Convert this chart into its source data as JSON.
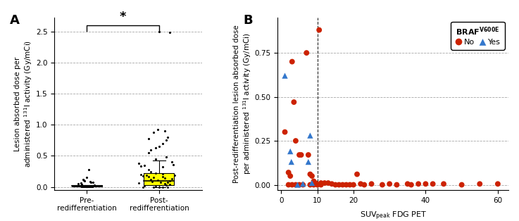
{
  "panel_A": {
    "pre_rediff": {
      "median": 0.018,
      "q1": 0.005,
      "q3": 0.028,
      "whisker_low": 0.0,
      "whisker_high": 0.035,
      "outliers_jitter": [
        [
          0.88,
          0.05
        ],
        [
          1.05,
          0.08
        ],
        [
          0.95,
          0.12
        ],
        [
          1.02,
          0.28
        ],
        [
          0.93,
          0.04
        ],
        [
          1.08,
          0.07
        ],
        [
          0.97,
          0.1
        ],
        [
          1.0,
          0.15
        ],
        [
          0.96,
          0.11
        ],
        [
          1.04,
          0.09
        ],
        [
          0.92,
          0.06
        ],
        [
          1.1,
          0.03
        ],
        [
          1.0,
          0.01
        ],
        [
          0.98,
          0.02
        ]
      ],
      "color": "#006400",
      "flier_color": "black"
    },
    "post_rediff": {
      "median": 0.095,
      "q1": 0.03,
      "q3": 0.22,
      "whisker_low": 0.0,
      "whisker_high": 0.43,
      "outliers": [
        0.6,
        0.63,
        0.65,
        0.7,
        0.75,
        0.78,
        0.8,
        0.88,
        0.9,
        0.92,
        2.48,
        2.5
      ],
      "jitter_inside": [
        [
          1.82,
          0.19
        ],
        [
          1.92,
          0.15
        ],
        [
          2.05,
          0.21
        ],
        [
          2.12,
          0.08
        ],
        [
          1.88,
          0.12
        ],
        [
          2.08,
          0.05
        ],
        [
          1.78,
          0.18
        ],
        [
          2.15,
          0.1
        ],
        [
          1.95,
          0.22
        ],
        [
          2.02,
          0.07
        ],
        [
          1.85,
          0.16
        ],
        [
          2.1,
          0.03
        ],
        [
          1.75,
          0.2
        ],
        [
          2.18,
          0.13
        ],
        [
          1.9,
          0.09
        ],
        [
          2.05,
          0.17
        ],
        [
          1.8,
          0.02
        ],
        [
          1.98,
          0.11
        ],
        [
          2.15,
          0.04
        ],
        [
          1.88,
          0.24
        ],
        [
          2.08,
          0.14
        ],
        [
          1.72,
          0.06
        ],
        [
          2.22,
          0.19
        ],
        [
          1.95,
          0.01
        ],
        [
          1.85,
          0.28
        ],
        [
          2.0,
          0.0
        ],
        [
          1.78,
          0.0
        ],
        [
          2.12,
          0.0
        ],
        [
          1.92,
          0.0
        ],
        [
          2.05,
          0.0
        ]
      ],
      "color": "#ffff00",
      "flier_color": "black"
    },
    "ylabel": "Lesion absorbed dose per\nadministered $^{131}$I activity (Gy/mCi)",
    "yticks": [
      0.0,
      0.5,
      1.0,
      1.5,
      2.0,
      2.5
    ],
    "ylim": [
      -0.05,
      2.72
    ],
    "xlabels": [
      "Pre-\nredifferentiation",
      "Post-\nredifferentiation"
    ],
    "significance_bracket_y": 2.6,
    "significance_text": "*"
  },
  "panel_B": {
    "red_circles": [
      [
        1.0,
        0.3
      ],
      [
        2.0,
        0.07
      ],
      [
        2.5,
        0.05
      ],
      [
        3.0,
        0.7
      ],
      [
        3.5,
        0.47
      ],
      [
        4.0,
        0.25
      ],
      [
        5.0,
        0.17
      ],
      [
        5.5,
        0.17
      ],
      [
        7.0,
        0.75
      ],
      [
        7.5,
        0.17
      ],
      [
        8.0,
        0.06
      ],
      [
        8.5,
        0.05
      ],
      [
        9.0,
        0.02
      ],
      [
        9.5,
        0.01
      ],
      [
        10.5,
        0.88
      ],
      [
        11.0,
        0.01
      ],
      [
        12.0,
        0.01
      ],
      [
        13.0,
        0.01
      ],
      [
        14.0,
        0.005
      ],
      [
        21.0,
        0.06
      ],
      [
        22.0,
        0.005
      ],
      [
        25.0,
        0.005
      ],
      [
        30.0,
        0.005
      ],
      [
        35.0,
        0.005
      ],
      [
        38.0,
        0.005
      ],
      [
        40.0,
        0.005
      ],
      [
        42.0,
        0.005
      ],
      [
        45.0,
        0.005
      ],
      [
        55.0,
        0.005
      ],
      [
        60.0,
        0.005
      ],
      [
        2.0,
        0.0
      ],
      [
        3.0,
        0.0
      ],
      [
        4.0,
        0.0
      ],
      [
        5.0,
        0.0
      ],
      [
        6.0,
        0.0
      ],
      [
        8.0,
        0.0
      ],
      [
        9.0,
        0.0
      ],
      [
        10.0,
        0.0
      ],
      [
        11.0,
        0.0
      ],
      [
        15.0,
        0.0
      ],
      [
        16.0,
        0.0
      ],
      [
        17.0,
        0.0
      ],
      [
        18.0,
        0.0
      ],
      [
        19.0,
        0.0
      ],
      [
        20.0,
        0.0
      ],
      [
        23.0,
        0.0
      ],
      [
        28.0,
        0.0
      ],
      [
        32.0,
        0.0
      ],
      [
        36.0,
        0.0
      ],
      [
        50.0,
        0.0
      ]
    ],
    "blue_triangles": [
      [
        1.0,
        0.62
      ],
      [
        2.5,
        0.19
      ],
      [
        2.8,
        0.13
      ],
      [
        7.5,
        0.13
      ],
      [
        8.0,
        0.28
      ],
      [
        4.5,
        0.0
      ],
      [
        6.0,
        0.005
      ],
      [
        8.5,
        0.01
      ]
    ],
    "vline_x": 10.0,
    "yticks": [
      0.0,
      0.25,
      0.5,
      0.75
    ],
    "ylim": [
      -0.03,
      0.95
    ],
    "xticks": [
      0,
      10,
      20,
      40,
      60
    ],
    "xlim": [
      -1,
      63
    ],
    "ylabel": "Post-redifferentiation lesion absorbed dose\nper administered $^{131}$I activity (Gy/mCi)",
    "red_color": "#cc2200",
    "blue_color": "#3377cc",
    "marker_size_red": 32,
    "marker_size_blue": 36
  }
}
